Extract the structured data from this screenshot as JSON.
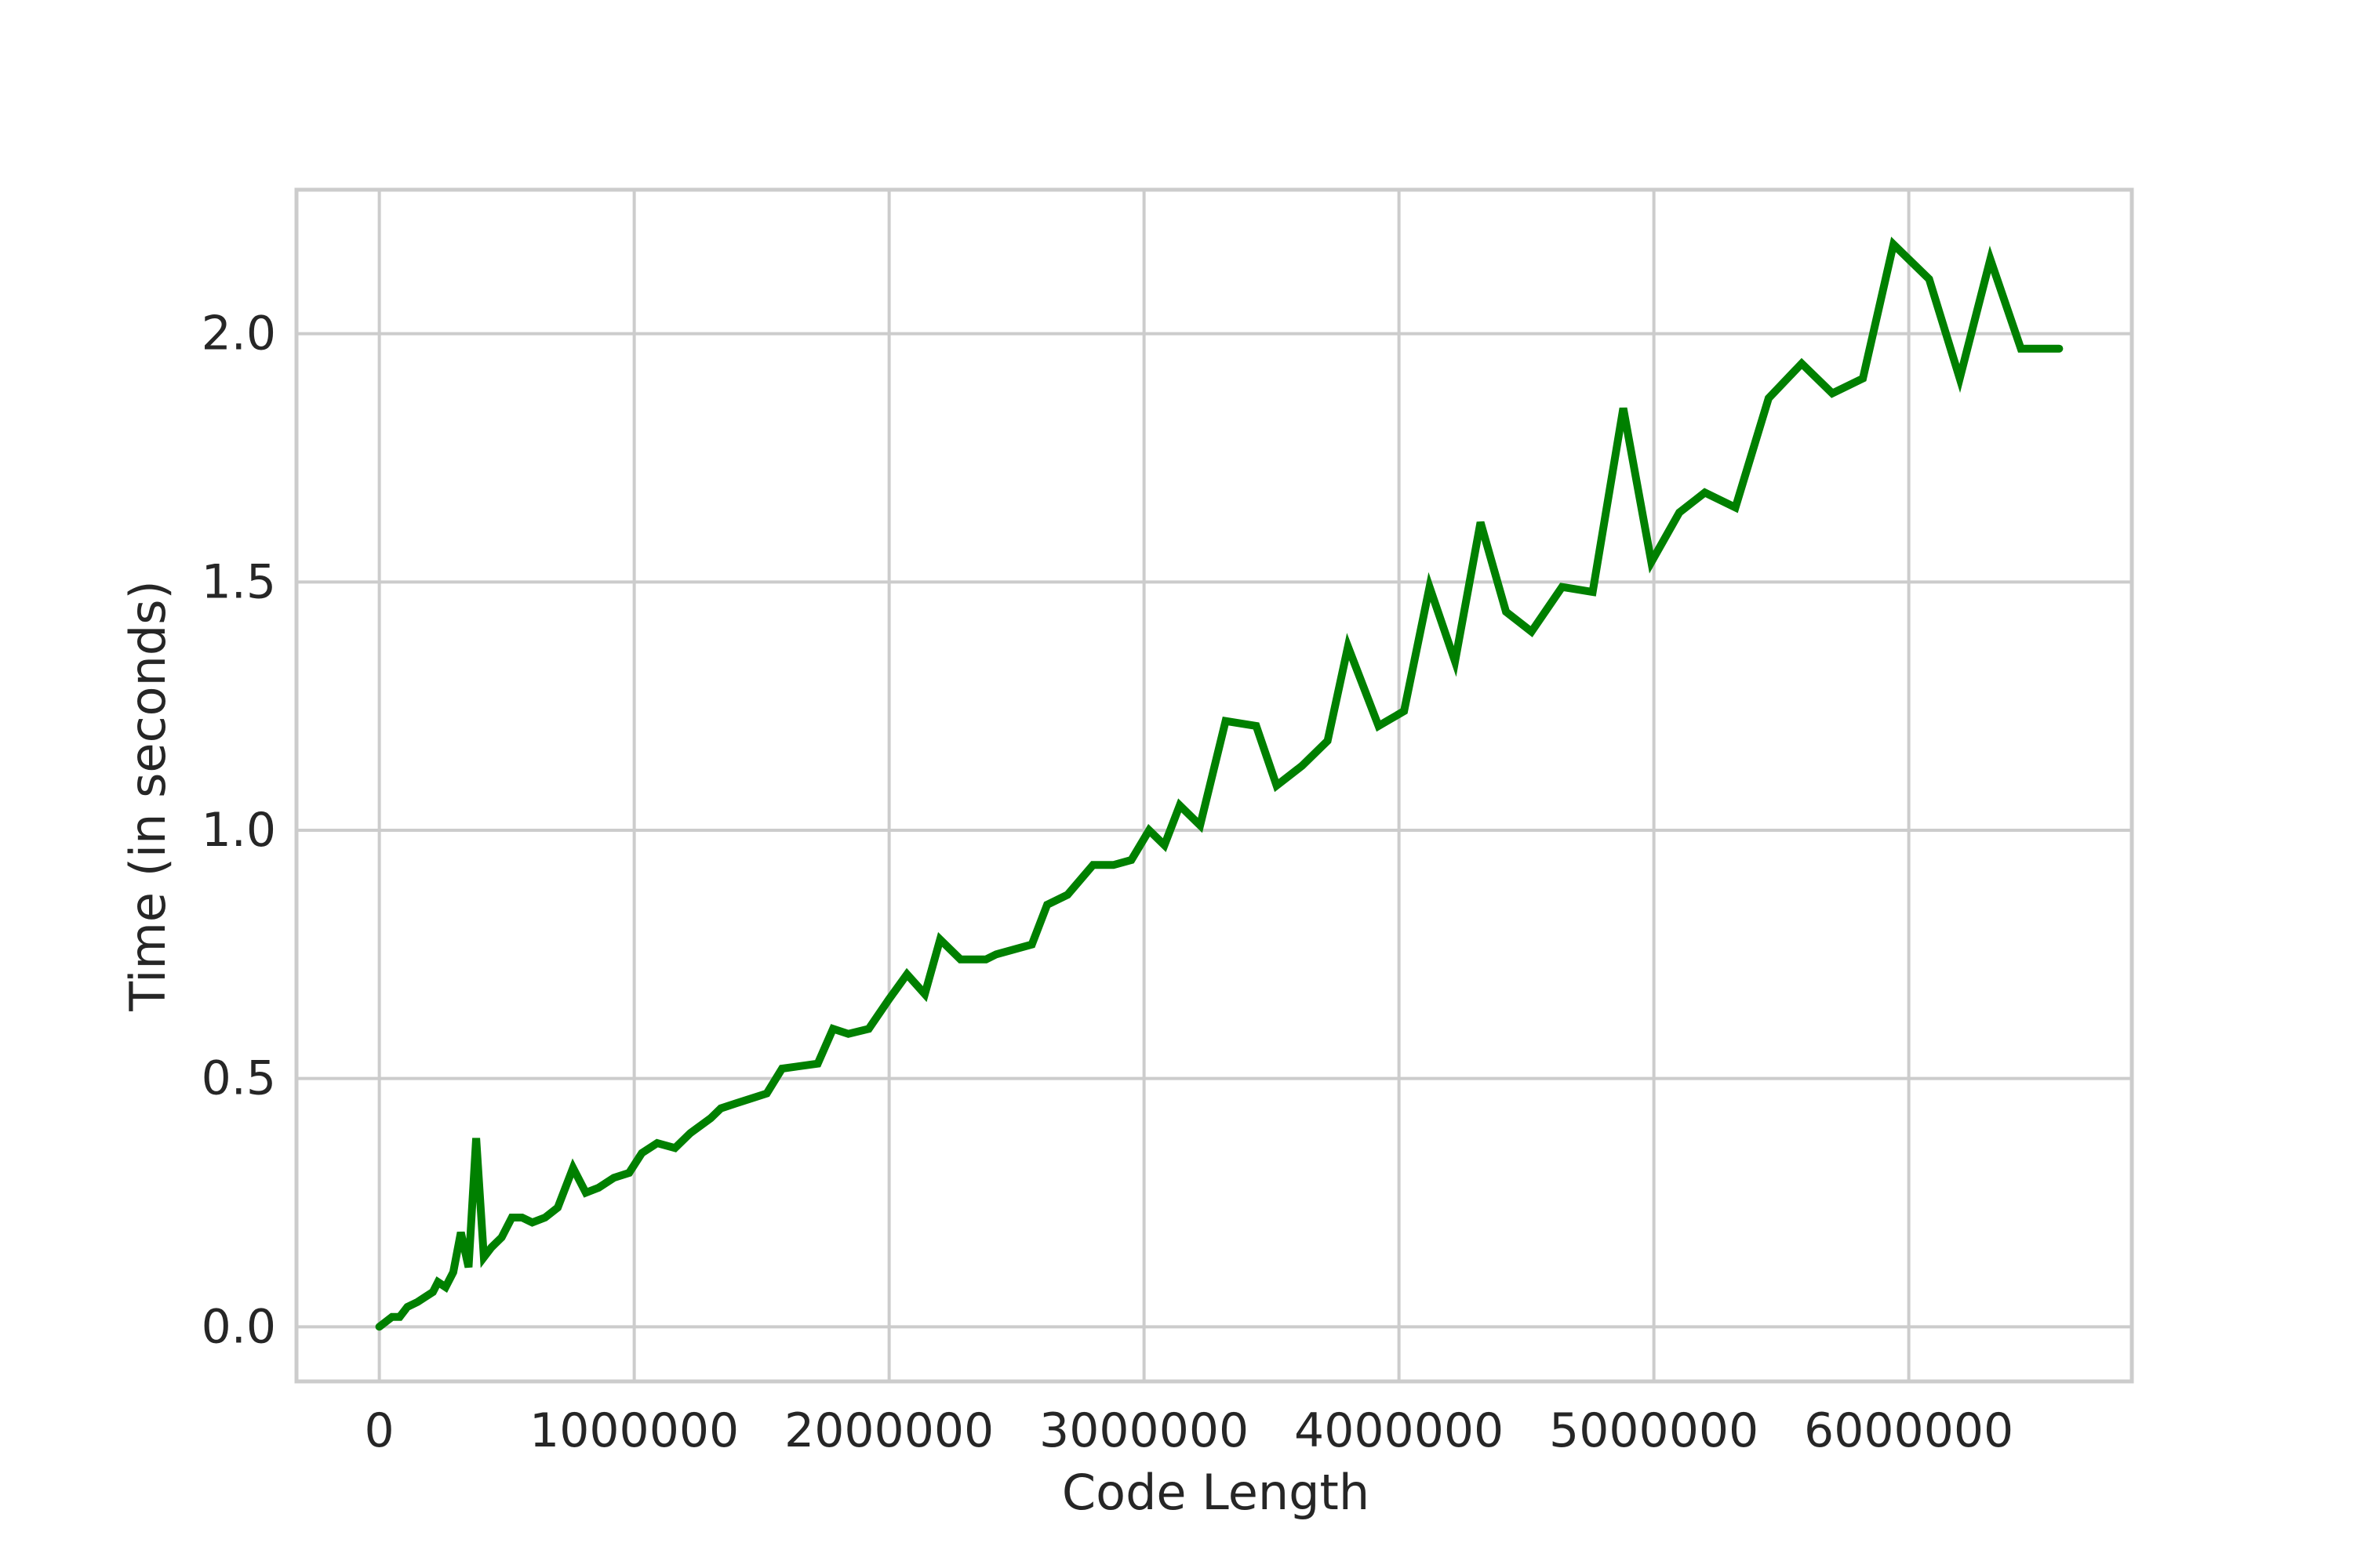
{
  "chart_data": {
    "type": "line",
    "title": "",
    "xlabel": "Code Length",
    "ylabel": "Time (in seconds)",
    "xlim": [
      -325000,
      6875000
    ],
    "ylim": [
      -0.11,
      2.29
    ],
    "xticks": [
      0,
      1000000,
      2000000,
      3000000,
      4000000,
      5000000,
      6000000
    ],
    "xtick_labels": [
      "0",
      "1000000",
      "2000000",
      "3000000",
      "4000000",
      "5000000",
      "6000000"
    ],
    "yticks": [
      0.0,
      0.5,
      1.0,
      1.5,
      2.0
    ],
    "ytick_labels": [
      "0.0",
      "0.5",
      "1.0",
      "1.5",
      "2.0"
    ],
    "grid": true,
    "colors": {
      "line": "#008000",
      "grid": "#cccccc",
      "frame": "#cccccc",
      "text": "#262626",
      "background": "#ffffff"
    },
    "series": [
      {
        "x": [
          0,
          50000,
          80000,
          110000,
          150000,
          180000,
          210000,
          230000,
          260000,
          290000,
          320000,
          350000,
          380000,
          410000,
          440000,
          480000,
          520000,
          560000,
          600000,
          650000,
          700000,
          760000,
          810000,
          860000,
          920000,
          980000,
          1030000,
          1090000,
          1160000,
          1220000,
          1300000,
          1340000,
          1400000,
          1460000,
          1520000,
          1580000,
          1720000,
          1780000,
          1840000,
          1920000,
          2000000,
          2070000,
          2140000,
          2200000,
          2280000,
          2380000,
          2420000,
          2560000,
          2620000,
          2700000,
          2800000,
          2880000,
          2950000,
          3020000,
          3080000,
          3140000,
          3220000,
          3320000,
          3440000,
          3520000,
          3620000,
          3720000,
          3800000,
          3920000,
          4020000,
          4120000,
          4220000,
          4320000,
          4420000,
          4520000,
          4640000,
          4760000,
          4880000,
          4990000,
          5100000,
          5200000,
          5320000,
          5450000,
          5580000,
          5700000,
          5820000,
          5940000,
          6080000,
          6200000,
          6320000,
          6440000,
          6590000
        ],
        "y": [
          0.0,
          0.02,
          0.02,
          0.04,
          0.05,
          0.06,
          0.07,
          0.09,
          0.08,
          0.11,
          0.19,
          0.12,
          0.38,
          0.14,
          0.16,
          0.18,
          0.22,
          0.22,
          0.21,
          0.22,
          0.24,
          0.32,
          0.27,
          0.28,
          0.3,
          0.31,
          0.35,
          0.37,
          0.36,
          0.39,
          0.42,
          0.44,
          0.45,
          0.46,
          0.47,
          0.52,
          0.53,
          0.6,
          0.59,
          0.6,
          0.66,
          0.71,
          0.67,
          0.78,
          0.74,
          0.74,
          0.75,
          0.77,
          0.85,
          0.87,
          0.93,
          0.93,
          0.94,
          1.0,
          0.97,
          1.05,
          1.01,
          1.22,
          1.21,
          1.09,
          1.13,
          1.18,
          1.37,
          1.21,
          1.24,
          1.49,
          1.34,
          1.62,
          1.44,
          1.4,
          1.49,
          1.48,
          1.85,
          1.54,
          1.64,
          1.68,
          1.65,
          1.87,
          1.94,
          1.88,
          1.91,
          2.18,
          2.11,
          1.91,
          2.15,
          1.97,
          1.97
        ]
      }
    ]
  }
}
